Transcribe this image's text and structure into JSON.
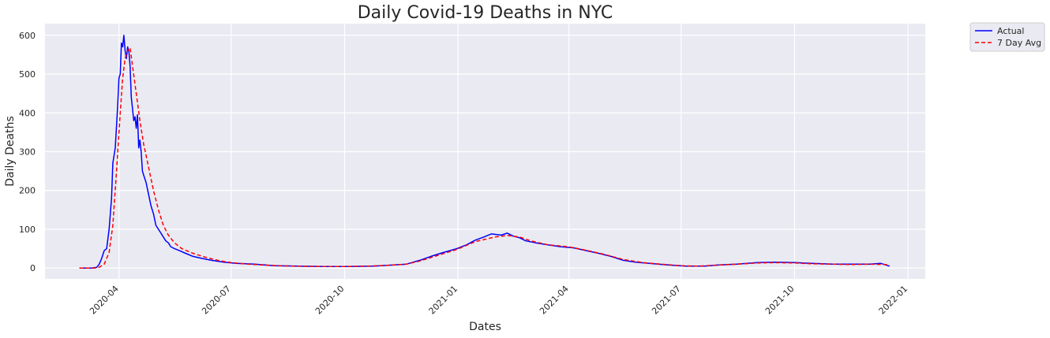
{
  "chart_data": {
    "type": "line",
    "title": "Daily Covid-19 Deaths in NYC",
    "xlabel": "Dates",
    "ylabel": "Daily Deaths",
    "xlim": [
      "2020-02-01",
      "2022-01-15"
    ],
    "ylim": [
      -28,
      630
    ],
    "x_ticks": [
      "2020-04",
      "2020-07",
      "2020-10",
      "2021-01",
      "2021-04",
      "2021-07",
      "2021-10",
      "2022-01"
    ],
    "y_ticks": [
      0,
      100,
      200,
      300,
      400,
      500,
      600
    ],
    "grid": true,
    "legend_position": "outside-top-right",
    "colors": {
      "background": "#eaeaf2",
      "grid": "#ffffff",
      "actual": "#0000ff",
      "avg": "#ff0000"
    },
    "series": [
      {
        "name": "Actual",
        "style": "solid",
        "points": [
          [
            "2020-02-29",
            0
          ],
          [
            "2020-03-10",
            0
          ],
          [
            "2020-03-14",
            2
          ],
          [
            "2020-03-16",
            10
          ],
          [
            "2020-03-18",
            25
          ],
          [
            "2020-03-20",
            45
          ],
          [
            "2020-03-22",
            50
          ],
          [
            "2020-03-24",
            100
          ],
          [
            "2020-03-26",
            180
          ],
          [
            "2020-03-27",
            270
          ],
          [
            "2020-03-29",
            310
          ],
          [
            "2020-03-31",
            420
          ],
          [
            "2020-04-01",
            490
          ],
          [
            "2020-04-02",
            500
          ],
          [
            "2020-04-03",
            580
          ],
          [
            "2020-04-04",
            570
          ],
          [
            "2020-04-05",
            600
          ],
          [
            "2020-04-06",
            560
          ],
          [
            "2020-04-07",
            540
          ],
          [
            "2020-04-08",
            570
          ],
          [
            "2020-04-09",
            560
          ],
          [
            "2020-04-10",
            520
          ],
          [
            "2020-04-11",
            440
          ],
          [
            "2020-04-12",
            410
          ],
          [
            "2020-04-13",
            380
          ],
          [
            "2020-04-14",
            390
          ],
          [
            "2020-04-15",
            360
          ],
          [
            "2020-04-16",
            395
          ],
          [
            "2020-04-17",
            310
          ],
          [
            "2020-04-18",
            330
          ],
          [
            "2020-04-19",
            300
          ],
          [
            "2020-04-20",
            250
          ],
          [
            "2020-04-21",
            240
          ],
          [
            "2020-04-22",
            230
          ],
          [
            "2020-04-23",
            220
          ],
          [
            "2020-04-25",
            190
          ],
          [
            "2020-04-27",
            160
          ],
          [
            "2020-04-29",
            140
          ],
          [
            "2020-05-01",
            110
          ],
          [
            "2020-05-03",
            100
          ],
          [
            "2020-05-05",
            90
          ],
          [
            "2020-05-07",
            80
          ],
          [
            "2020-05-09",
            70
          ],
          [
            "2020-05-11",
            65
          ],
          [
            "2020-05-13",
            55
          ],
          [
            "2020-05-16",
            50
          ],
          [
            "2020-05-20",
            45
          ],
          [
            "2020-05-25",
            38
          ],
          [
            "2020-05-31",
            30
          ],
          [
            "2020-06-07",
            25
          ],
          [
            "2020-06-15",
            20
          ],
          [
            "2020-06-25",
            15
          ],
          [
            "2020-07-05",
            12
          ],
          [
            "2020-07-20",
            10
          ],
          [
            "2020-08-05",
            6
          ],
          [
            "2020-08-25",
            5
          ],
          [
            "2020-09-15",
            4
          ],
          [
            "2020-10-05",
            4
          ],
          [
            "2020-10-25",
            5
          ],
          [
            "2020-11-10",
            8
          ],
          [
            "2020-11-20",
            10
          ],
          [
            "2020-12-01",
            20
          ],
          [
            "2020-12-10",
            30
          ],
          [
            "2020-12-20",
            40
          ],
          [
            "2020-12-31",
            50
          ],
          [
            "2021-01-08",
            60
          ],
          [
            "2021-01-15",
            72
          ],
          [
            "2021-01-22",
            80
          ],
          [
            "2021-01-28",
            88
          ],
          [
            "2021-02-05",
            85
          ],
          [
            "2021-02-10",
            90
          ],
          [
            "2021-02-15",
            82
          ],
          [
            "2021-02-20",
            78
          ],
          [
            "2021-02-25",
            70
          ],
          [
            "2021-03-05",
            65
          ],
          [
            "2021-03-15",
            60
          ],
          [
            "2021-03-25",
            55
          ],
          [
            "2021-04-05",
            52
          ],
          [
            "2021-04-15",
            45
          ],
          [
            "2021-04-25",
            38
          ],
          [
            "2021-05-05",
            30
          ],
          [
            "2021-05-15",
            20
          ],
          [
            "2021-05-25",
            15
          ],
          [
            "2021-06-05",
            12
          ],
          [
            "2021-06-20",
            8
          ],
          [
            "2021-07-05",
            5
          ],
          [
            "2021-07-20",
            5
          ],
          [
            "2021-08-01",
            8
          ],
          [
            "2021-08-15",
            10
          ],
          [
            "2021-09-01",
            14
          ],
          [
            "2021-09-15",
            15
          ],
          [
            "2021-10-01",
            14
          ],
          [
            "2021-10-15",
            12
          ],
          [
            "2021-11-01",
            10
          ],
          [
            "2021-11-15",
            10
          ],
          [
            "2021-12-01",
            10
          ],
          [
            "2021-12-10",
            12
          ],
          [
            "2021-12-17",
            5
          ]
        ]
      },
      {
        "name": "7 Day Avg",
        "style": "dashed",
        "points": [
          [
            "2020-02-29",
            0
          ],
          [
            "2020-03-12",
            0
          ],
          [
            "2020-03-16",
            2
          ],
          [
            "2020-03-20",
            10
          ],
          [
            "2020-03-24",
            40
          ],
          [
            "2020-03-27",
            110
          ],
          [
            "2020-03-30",
            250
          ],
          [
            "2020-04-02",
            400
          ],
          [
            "2020-04-04",
            490
          ],
          [
            "2020-04-06",
            540
          ],
          [
            "2020-04-08",
            560
          ],
          [
            "2020-04-10",
            568
          ],
          [
            "2020-04-12",
            520
          ],
          [
            "2020-04-15",
            450
          ],
          [
            "2020-04-18",
            380
          ],
          [
            "2020-04-21",
            320
          ],
          [
            "2020-04-25",
            260
          ],
          [
            "2020-04-29",
            200
          ],
          [
            "2020-05-03",
            150
          ],
          [
            "2020-05-07",
            110
          ],
          [
            "2020-05-11",
            85
          ],
          [
            "2020-05-16",
            65
          ],
          [
            "2020-05-22",
            50
          ],
          [
            "2020-05-31",
            38
          ],
          [
            "2020-06-10",
            28
          ],
          [
            "2020-06-20",
            20
          ],
          [
            "2020-07-01",
            14
          ],
          [
            "2020-07-15",
            10
          ],
          [
            "2020-08-01",
            7
          ],
          [
            "2020-08-20",
            5
          ],
          [
            "2020-09-10",
            4
          ],
          [
            "2020-10-01",
            4
          ],
          [
            "2020-10-20",
            5
          ],
          [
            "2020-11-05",
            7
          ],
          [
            "2020-11-20",
            10
          ],
          [
            "2020-12-01",
            18
          ],
          [
            "2020-12-15",
            32
          ],
          [
            "2020-12-31",
            48
          ],
          [
            "2021-01-15",
            68
          ],
          [
            "2021-01-31",
            80
          ],
          [
            "2021-02-10",
            84
          ],
          [
            "2021-02-20",
            80
          ],
          [
            "2021-03-01",
            70
          ],
          [
            "2021-03-15",
            60
          ],
          [
            "2021-03-31",
            55
          ],
          [
            "2021-04-15",
            46
          ],
          [
            "2021-04-30",
            35
          ],
          [
            "2021-05-15",
            22
          ],
          [
            "2021-05-31",
            14
          ],
          [
            "2021-06-15",
            10
          ],
          [
            "2021-07-01",
            6
          ],
          [
            "2021-07-15",
            5
          ],
          [
            "2021-08-01",
            8
          ],
          [
            "2021-08-15",
            10
          ],
          [
            "2021-09-01",
            13
          ],
          [
            "2021-09-15",
            14
          ],
          [
            "2021-10-01",
            13
          ],
          [
            "2021-10-15",
            11
          ],
          [
            "2021-11-01",
            10
          ],
          [
            "2021-11-15",
            9
          ],
          [
            "2021-12-01",
            10
          ],
          [
            "2021-12-17",
            9
          ]
        ]
      }
    ]
  }
}
